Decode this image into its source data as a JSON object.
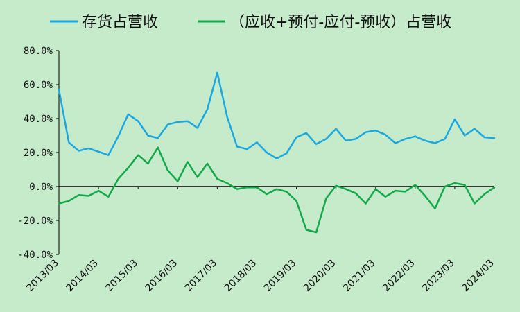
{
  "chart_data": {
    "type": "line",
    "title": "",
    "xlabel": "",
    "ylabel": "",
    "ylim": [
      -40,
      80
    ],
    "y_ticks": [
      -40,
      -20,
      0,
      20,
      40,
      60,
      80
    ],
    "y_tick_labels": [
      "-40.0%",
      "-20.0%",
      "0.0%",
      "20.0%",
      "40.0%",
      "60.0%",
      "80.0%"
    ],
    "x_tick_labels": [
      "2013/03",
      "2014/03",
      "2015/03",
      "2016/03",
      "2017/03",
      "2018/03",
      "2019/03",
      "2020/03",
      "2021/03",
      "2022/03",
      "2023/03",
      "2024/03"
    ],
    "legend_position": "top",
    "grid": false,
    "x": [
      "2013/03",
      "2013/06",
      "2013/09",
      "2013/12",
      "2014/03",
      "2014/06",
      "2014/09",
      "2014/12",
      "2015/03",
      "2015/06",
      "2015/09",
      "2015/12",
      "2016/03",
      "2016/06",
      "2016/09",
      "2016/12",
      "2017/03",
      "2017/06",
      "2017/09",
      "2017/12",
      "2018/03",
      "2018/06",
      "2018/09",
      "2018/12",
      "2019/03",
      "2019/06",
      "2019/09",
      "2019/12",
      "2020/03",
      "2020/06",
      "2020/09",
      "2020/12",
      "2021/03",
      "2021/06",
      "2021/09",
      "2021/12",
      "2022/03",
      "2022/06",
      "2022/09",
      "2022/12",
      "2023/03",
      "2023/06",
      "2023/09",
      "2023/12",
      "2024/03"
    ],
    "series": [
      {
        "name": "存货占营收",
        "color": "#1aa7e0",
        "values": [
          57.0,
          26.0,
          21.0,
          22.5,
          20.5,
          18.5,
          29.5,
          42.5,
          38.5,
          30.0,
          28.5,
          36.5,
          38.0,
          38.5,
          34.5,
          45.5,
          67.0,
          41.0,
          23.5,
          22.0,
          26.0,
          20.0,
          16.5,
          19.5,
          29.0,
          31.5,
          25.0,
          28.0,
          34.0,
          27.0,
          28.0,
          32.0,
          33.0,
          30.5,
          25.5,
          28.0,
          29.5,
          27.0,
          25.5,
          28.0,
          39.5,
          30.0,
          34.0,
          29.0,
          28.5
        ]
      },
      {
        "name": "（应收+预付-应付-预收）占营收",
        "color": "#12a84a",
        "values": [
          -10.0,
          -8.5,
          -5.0,
          -5.5,
          -2.5,
          -6.0,
          4.5,
          11.0,
          18.5,
          13.5,
          23.0,
          9.5,
          3.0,
          14.5,
          5.5,
          13.5,
          4.5,
          2.0,
          -1.5,
          -0.5,
          -0.5,
          -4.5,
          -1.5,
          -3.0,
          -8.5,
          -25.5,
          -27.0,
          -7.0,
          0.5,
          -1.5,
          -4.0,
          -10.0,
          -1.5,
          -6.0,
          -2.5,
          -3.0,
          1.0,
          -5.5,
          -13.0,
          0.0,
          2.0,
          1.0,
          -10.0,
          -4.5,
          -0.5
        ]
      }
    ]
  }
}
